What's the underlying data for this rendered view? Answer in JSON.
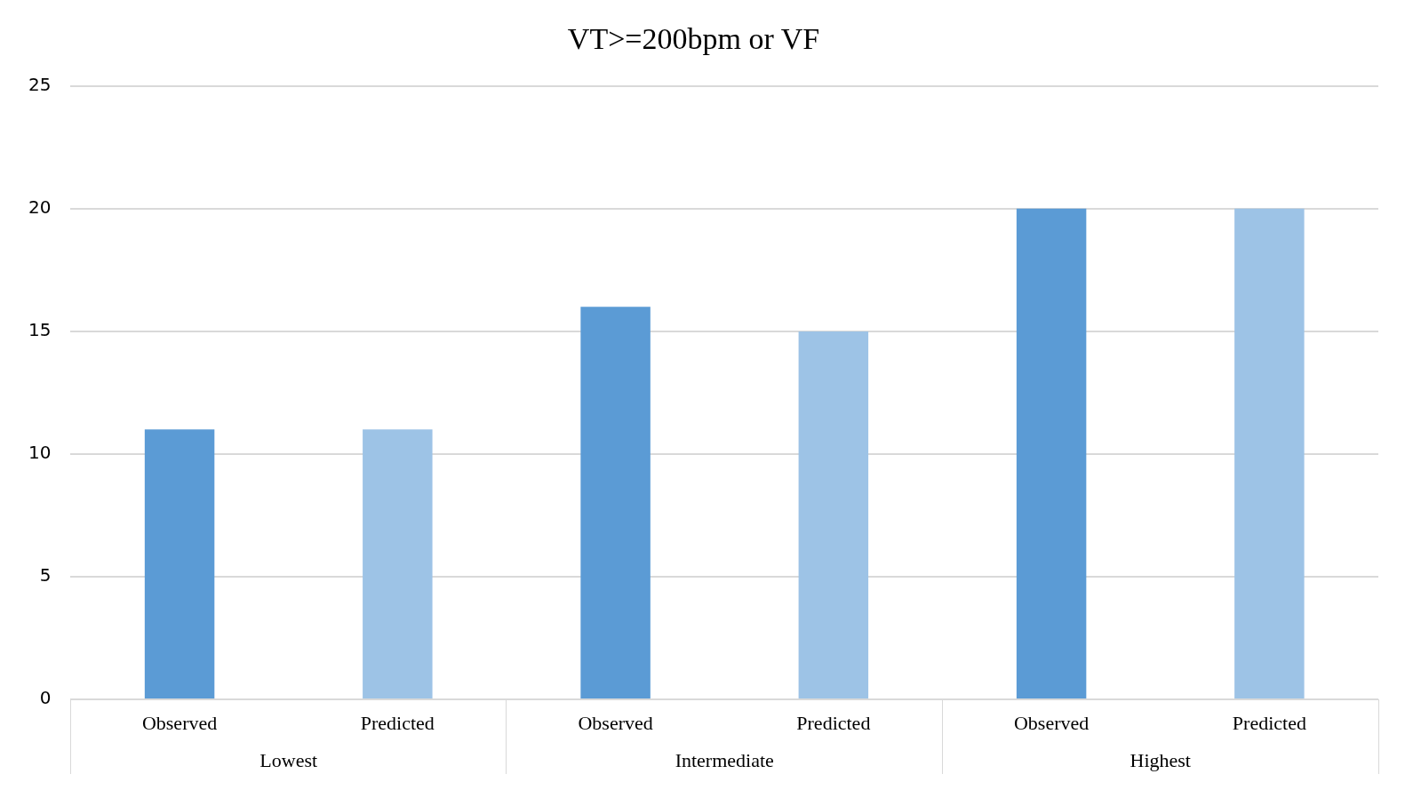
{
  "chart_data": {
    "type": "bar",
    "title": "VT>=200bpm or VF",
    "categories": [
      "Lowest",
      "Intermediate",
      "Highest"
    ],
    "series": [
      {
        "name": "Observed",
        "color": "#5b9bd5",
        "values": [
          11,
          16,
          20
        ]
      },
      {
        "name": "Predicted",
        "color": "#9dc3e6",
        "values": [
          11,
          15,
          20
        ]
      }
    ],
    "ylim": [
      0,
      25
    ],
    "yticks": [
      0,
      5,
      10,
      15,
      20,
      25
    ],
    "grid": "y",
    "legend": false
  }
}
